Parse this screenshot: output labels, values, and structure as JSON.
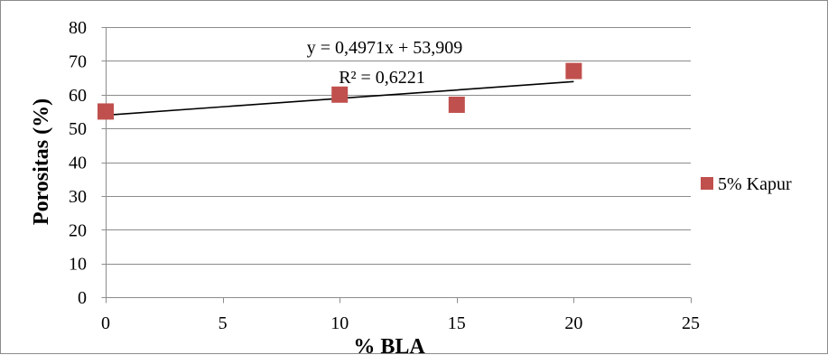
{
  "chart_data": {
    "type": "scatter",
    "xlabel": "% BLA",
    "ylabel": "Porositas (%)",
    "xlim": [
      0,
      25
    ],
    "ylim": [
      0,
      80
    ],
    "x_ticks": [
      0,
      5,
      10,
      15,
      20,
      25
    ],
    "y_ticks": [
      0,
      10,
      20,
      30,
      40,
      50,
      60,
      70,
      80
    ],
    "grid": "horizontal",
    "legend_position": "right",
    "series": [
      {
        "name": "5% Kapur",
        "color": "#c0504d",
        "marker": "square",
        "x": [
          0,
          10,
          15,
          20
        ],
        "y": [
          55,
          60,
          57,
          67
        ]
      }
    ],
    "trendline": {
      "type": "linear",
      "slope": 0.4971,
      "intercept": 53.909,
      "x_range": [
        0,
        20
      ],
      "equation_label": "y = 0,4971x + 53,909",
      "r2_label": "R² = 0,6221"
    }
  }
}
